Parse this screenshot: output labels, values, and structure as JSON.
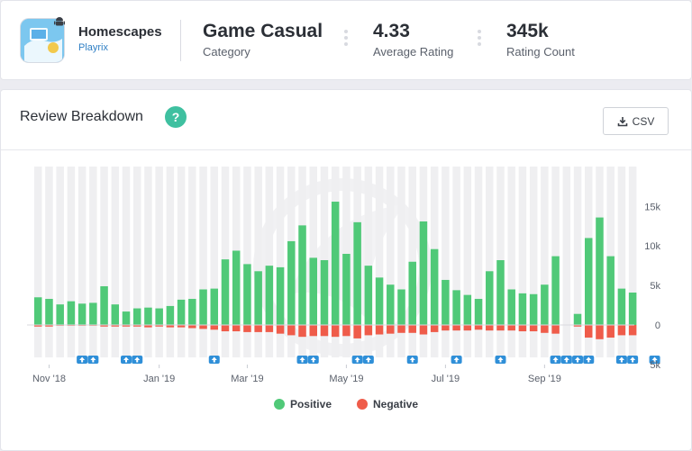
{
  "app": {
    "name": "Homescapes",
    "developer": "Playrix"
  },
  "stats": [
    {
      "value": "Game Casual",
      "label": "Category"
    },
    {
      "value": "4.33",
      "label": "Average Rating"
    },
    {
      "value": "345k",
      "label": "Rating Count"
    }
  ],
  "section": {
    "title": "Review Breakdown",
    "help_label": "?",
    "csv_label": "CSV"
  },
  "colors": {
    "positive": "#50c978",
    "negative": "#ef5c4a",
    "marker": "#2f8fd8"
  },
  "chart_data": {
    "type": "bar",
    "title": "",
    "xlabel": "",
    "ylabel": "",
    "ylim": [
      -5000,
      15000
    ],
    "yticks": [
      {
        "value": 15000,
        "label": "15k"
      },
      {
        "value": 10000,
        "label": "10k"
      },
      {
        "value": 5000,
        "label": "5k"
      },
      {
        "value": 0,
        "label": "0"
      },
      {
        "value": -5000,
        "label": "5k"
      }
    ],
    "x_tick_labels": [
      "Nov '18",
      "Jan '19",
      "Mar '19",
      "May '19",
      "Jul '19",
      "Sep '19"
    ],
    "x_tick_week_index": [
      1,
      11,
      19,
      28,
      37,
      46
    ],
    "series": [
      {
        "name": "Positive",
        "color": "#50c978",
        "values": [
          3500,
          3300,
          2600,
          3000,
          2700,
          2800,
          4900,
          2600,
          1700,
          2100,
          2200,
          2100,
          2400,
          3200,
          3300,
          4500,
          4600,
          8300,
          9400,
          7700,
          6800,
          7500,
          7300,
          10600,
          12600,
          8500,
          8200,
          15600,
          9000,
          13000,
          7500,
          6000,
          5100,
          4500,
          8000,
          13100,
          9600,
          5700,
          4400,
          3800,
          3300,
          6800,
          8200,
          4500,
          4000,
          3900,
          5100,
          8700,
          0,
          1400,
          11000,
          13600,
          8700,
          4600,
          4100
        ]
      },
      {
        "name": "Negative",
        "color": "#ef5c4a",
        "values": [
          -200,
          -200,
          -100,
          -100,
          -100,
          -100,
          -200,
          -200,
          -200,
          -200,
          -300,
          -200,
          -300,
          -300,
          -400,
          -500,
          -600,
          -800,
          -800,
          -900,
          -900,
          -900,
          -1100,
          -1300,
          -1500,
          -1400,
          -1400,
          -1500,
          -1400,
          -1700,
          -1300,
          -1200,
          -1100,
          -1000,
          -1000,
          -1200,
          -900,
          -700,
          -700,
          -700,
          -600,
          -700,
          -700,
          -700,
          -800,
          -800,
          -1000,
          -1100,
          0,
          -200,
          -1600,
          -1800,
          -1600,
          -1300,
          -1300
        ]
      }
    ],
    "markers_week_index": [
      4,
      5,
      8,
      9,
      16,
      24,
      25,
      29,
      30,
      34,
      38,
      42,
      47,
      48,
      49,
      50,
      53,
      54,
      56
    ],
    "legend": {
      "placement": "bottom-center",
      "items": [
        "Positive",
        "Negative"
      ]
    },
    "grid": true
  }
}
